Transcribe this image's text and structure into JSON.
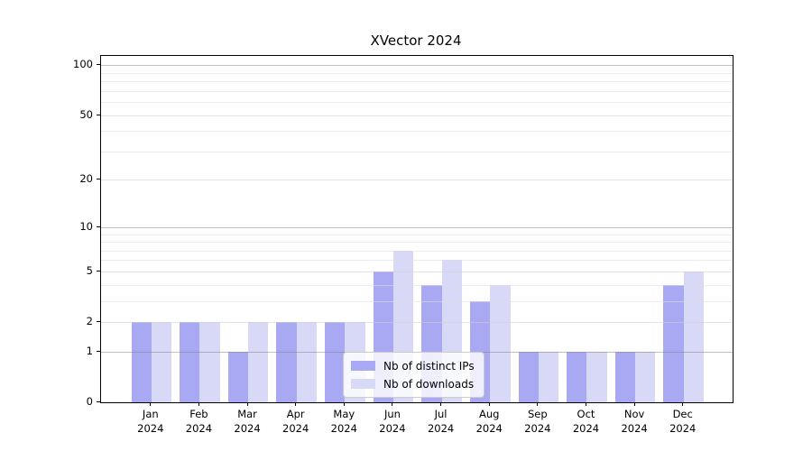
{
  "title": "XVector 2024",
  "chart_data": {
    "type": "bar",
    "title": "XVector 2024",
    "categories": [
      "Jan",
      "Feb",
      "Mar",
      "Apr",
      "May",
      "Jun",
      "Jul",
      "Aug",
      "Sep",
      "Oct",
      "Nov",
      "Dec"
    ],
    "year_label": "2024",
    "series": [
      {
        "name": "Nb of distinct IPs",
        "color": "#a9a9f3",
        "values": [
          2,
          2,
          1,
          2,
          2,
          5,
          4,
          3,
          1,
          1,
          1,
          4
        ]
      },
      {
        "name": "Nb of downloads",
        "color": "#d8d8f7",
        "values": [
          2,
          2,
          2,
          2,
          2,
          7,
          6,
          4,
          1,
          1,
          1,
          5
        ]
      }
    ],
    "yscale": "log1p",
    "ylim": [
      0,
      113.6
    ],
    "yticks": [
      0,
      1,
      2,
      5,
      10,
      20,
      50,
      100
    ],
    "grid": {
      "on": true,
      "decade_lines": [
        1,
        10,
        100
      ],
      "labeled_lines": [
        2,
        5,
        20,
        50
      ],
      "minor_lines": [
        3,
        4,
        6,
        7,
        8,
        9,
        30,
        40,
        60,
        70,
        80,
        90
      ],
      "decade_color": "rgba(120,120,120,0.45)",
      "labeled_color": "rgba(205,205,205,0.55)",
      "minor_color": "rgba(224,224,224,0.6)"
    },
    "legend": {
      "position": "lower center",
      "entries": [
        "Nb of distinct IPs",
        "Nb of downloads"
      ]
    },
    "xlabel": "",
    "ylabel": ""
  }
}
